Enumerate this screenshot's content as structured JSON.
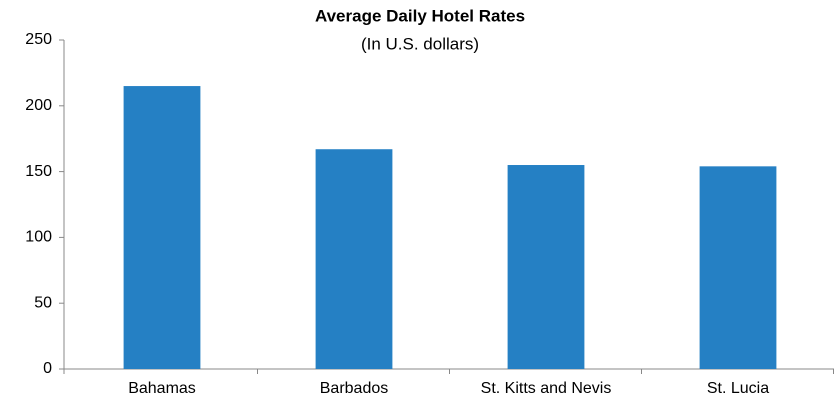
{
  "chart_data": {
    "type": "bar",
    "title": "Average Daily Hotel Rates",
    "subtitle": "(In U.S. dollars)",
    "categories": [
      "Bahamas",
      "Barbados",
      "St. Kitts and Nevis",
      "St. Lucia"
    ],
    "values": [
      215,
      167,
      155,
      154
    ],
    "color": "#2580c4",
    "ylim": [
      0,
      250
    ],
    "yticks": [
      0,
      50,
      100,
      150,
      200,
      250
    ],
    "grid": false
  }
}
